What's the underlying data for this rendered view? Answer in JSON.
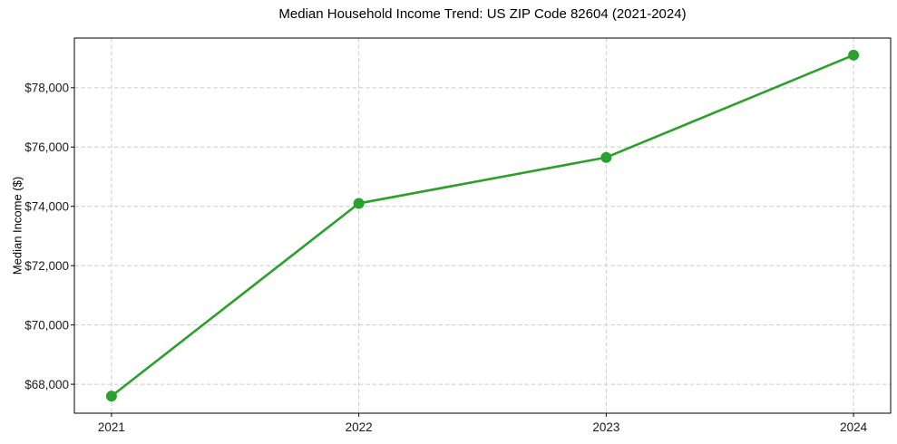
{
  "chart_data": {
    "type": "line",
    "title": "Median Household Income Trend: US ZIP Code 82604 (2021-2024)",
    "xlabel": "",
    "ylabel": "Median Income ($)",
    "x": [
      2021,
      2022,
      2023,
      2024
    ],
    "x_tick_labels": [
      "2021",
      "2022",
      "2023",
      "2024"
    ],
    "series": [
      {
        "name": "Median Household Income",
        "values": [
          67600,
          74100,
          75650,
          79100
        ],
        "color": "#2ca02c",
        "marker": "circle",
        "line_width": 2.6,
        "marker_radius": 6
      }
    ],
    "y_ticks": [
      68000,
      70000,
      72000,
      74000,
      76000,
      78000
    ],
    "y_tick_labels": [
      "$68,000",
      "$70,000",
      "$72,000",
      "$74,000",
      "$76,000",
      "$78,000"
    ],
    "xlim": [
      2020.85,
      2024.15
    ],
    "ylim": [
      67025,
      79675
    ],
    "grid": true,
    "grid_style": "dashed",
    "grid_color": "#cccccc",
    "axis_color": "#000000",
    "tick_label_color": "#1a1a1a",
    "background": "#ffffff",
    "legend_position": "none"
  }
}
